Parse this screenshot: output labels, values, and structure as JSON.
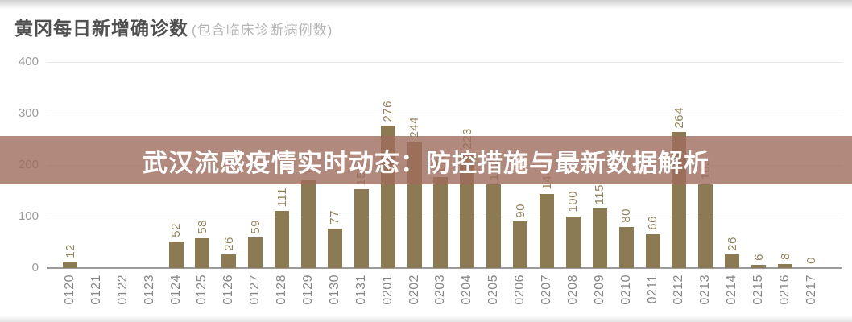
{
  "header": {
    "title": "黄冈每日新增确诊数",
    "subtitle": "(包含临床诊断病例数)"
  },
  "overlay": {
    "text": "武汉流感疫情实时动态：防控措施与最新数据解析",
    "bg_color": "rgba(159,109,92,0.8)",
    "text_color": "#ffffff"
  },
  "chart_data": {
    "type": "bar",
    "title": "黄冈每日新增确诊数(包含临床诊断病例数)",
    "xlabel": "",
    "ylabel": "",
    "ylim": [
      0,
      400
    ],
    "y_ticks": [
      0,
      100,
      200,
      300,
      400
    ],
    "grid": true,
    "legend": false,
    "bar_color": "#8c7a52",
    "value_label_color": "#94845e",
    "categories": [
      "0120",
      "0121",
      "0122",
      "0123",
      "0124",
      "0125",
      "0126",
      "0127",
      "0128",
      "0129",
      "0130",
      "0131",
      "0201",
      "0202",
      "0203",
      "0204",
      "0205",
      "0206",
      "0207",
      "0208",
      "0209",
      "0210",
      "0211",
      "0212",
      "0213",
      "0214",
      "0215",
      "0216",
      "0217"
    ],
    "values": [
      12,
      0,
      0,
      0,
      52,
      58,
      26,
      59,
      111,
      172,
      77,
      153,
      276,
      244,
      176,
      223,
      162,
      90,
      144,
      100,
      115,
      80,
      66,
      264,
      163,
      26,
      6,
      8,
      0
    ],
    "value_labels": [
      "12",
      "",
      "",
      "",
      "52",
      "58",
      "26",
      "59",
      "111",
      "172",
      "77",
      "153",
      "276",
      "244",
      "176",
      "223",
      "162",
      "90",
      "144",
      "100",
      "115",
      "80",
      "66",
      "264",
      "163",
      "26",
      "6",
      "8",
      "0"
    ]
  }
}
